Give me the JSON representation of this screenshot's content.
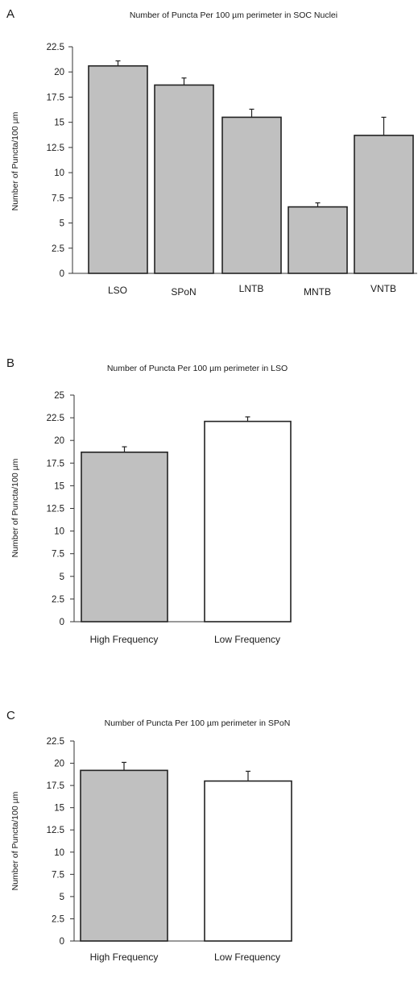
{
  "chart_data": [
    {
      "panel_label": "A",
      "type": "bar",
      "title": "Number of Puncta Per 100 µm perimeter in SOC Nuclei",
      "xlabel": "",
      "ylabel": "Number of Puncta/100 µm",
      "categories": [
        "LSO",
        "SPoN",
        "LNTB",
        "MNTB",
        "VNTB"
      ],
      "series": [
        {
          "values": [
            20.6,
            18.7,
            15.5,
            6.6,
            13.7
          ],
          "errors": [
            0.5,
            0.7,
            0.8,
            0.4,
            1.8
          ],
          "colors": [
            "#c0c0c0",
            "#c0c0c0",
            "#c0c0c0",
            "#c0c0c0",
            "#c0c0c0"
          ]
        }
      ],
      "ylim": [
        0,
        22.5
      ],
      "yticks": [
        "0",
        "2.5",
        "5",
        "7.5",
        "10",
        "12.5",
        "15",
        "17.5",
        "20",
        "22.5"
      ],
      "grid": false,
      "legend": "none"
    },
    {
      "panel_label": "B",
      "type": "bar",
      "title": "Number of Puncta Per 100 µm perimeter in LSO",
      "xlabel": "",
      "ylabel": "Number of Puncta/100 µm",
      "categories": [
        "High Frequency",
        "Low  Frequency"
      ],
      "series": [
        {
          "values": [
            18.7,
            22.1
          ],
          "errors": [
            0.6,
            0.5
          ],
          "colors": [
            "#c0c0c0",
            "#ffffff"
          ]
        }
      ],
      "ylim": [
        0,
        25
      ],
      "yticks": [
        "0",
        "2.5",
        "5",
        "7.5",
        "10",
        "12.5",
        "15",
        "17.5",
        "20",
        "22.5",
        "25"
      ],
      "grid": false,
      "legend": "none"
    },
    {
      "panel_label": "C",
      "type": "bar",
      "title": "Number of Puncta Per 100 µm perimeter in SPoN",
      "xlabel": "",
      "ylabel": "Number of Puncta/100 µm",
      "categories": [
        "High Frequency",
        "Low  Frequency"
      ],
      "series": [
        {
          "values": [
            19.2,
            18.0
          ],
          "errors": [
            0.9,
            1.1
          ],
          "colors": [
            "#c0c0c0",
            "#ffffff"
          ]
        }
      ],
      "ylim": [
        0,
        22.5
      ],
      "yticks": [
        "0",
        "2.5",
        "5",
        "7.5",
        "10",
        "12.5",
        "15",
        "17.5",
        "20",
        "22.5"
      ],
      "grid": false,
      "legend": "none"
    }
  ]
}
